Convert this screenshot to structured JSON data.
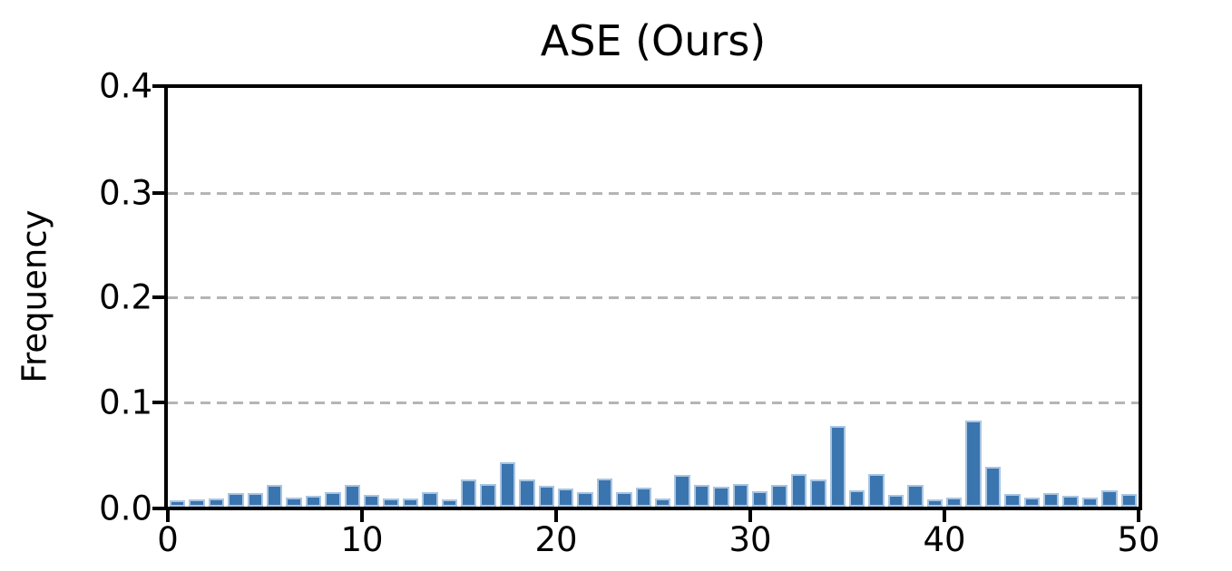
{
  "chart_data": {
    "type": "bar",
    "title": "ASE (Ours)",
    "xlabel": "",
    "ylabel": "Frequency",
    "n_bins": 50,
    "x": [
      0,
      1,
      2,
      3,
      4,
      5,
      6,
      7,
      8,
      9,
      10,
      11,
      12,
      13,
      14,
      15,
      16,
      17,
      18,
      19,
      20,
      21,
      22,
      23,
      24,
      25,
      26,
      27,
      28,
      29,
      30,
      31,
      32,
      33,
      34,
      35,
      36,
      37,
      38,
      39,
      40,
      41,
      42,
      43,
      44,
      45,
      46,
      47,
      48,
      49
    ],
    "values": [
      0.006,
      0.007,
      0.008,
      0.013,
      0.013,
      0.021,
      0.009,
      0.01,
      0.014,
      0.021,
      0.011,
      0.008,
      0.008,
      0.014,
      0.007,
      0.026,
      0.022,
      0.042,
      0.026,
      0.02,
      0.017,
      0.014,
      0.027,
      0.014,
      0.018,
      0.008,
      0.03,
      0.021,
      0.019,
      0.022,
      0.015,
      0.021,
      0.031,
      0.026,
      0.077,
      0.016,
      0.031,
      0.011,
      0.021,
      0.007,
      0.009,
      0.082,
      0.038,
      0.012,
      0.009,
      0.013,
      0.01,
      0.009,
      0.016,
      0.012
    ],
    "xlim": [
      0,
      50
    ],
    "ylim": [
      0,
      0.4
    ],
    "x_tick_values": [
      0,
      10,
      20,
      30,
      40,
      50
    ],
    "x_tick_labels": [
      "0",
      "10",
      "20",
      "30",
      "40",
      "50"
    ],
    "y_tick_values": [
      0.0,
      0.1,
      0.2,
      0.3,
      0.4
    ],
    "y_tick_labels": [
      "0.0",
      "0.1",
      "0.2",
      "0.3",
      "0.4"
    ],
    "gridline_values": [
      0.1,
      0.2,
      0.3
    ],
    "grid": "horizontal-dashed",
    "legend": "none"
  },
  "colors": {
    "bar_fill": "#3b75af",
    "bar_edge": "#a9c5e1",
    "grid": "#b5b5b5",
    "axis": "#000000",
    "text": "#000000",
    "background": "#ffffff"
  }
}
